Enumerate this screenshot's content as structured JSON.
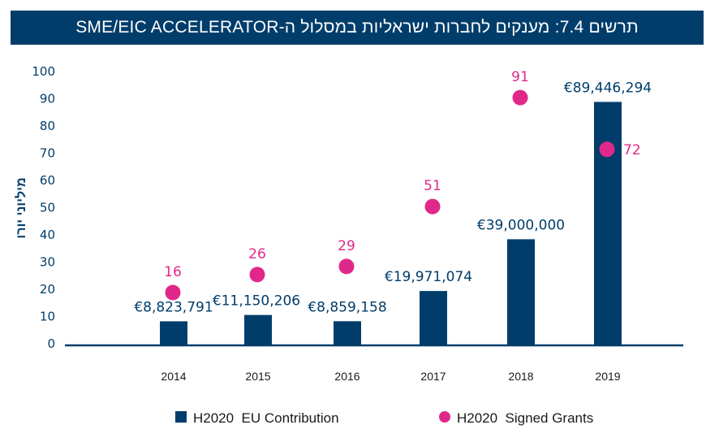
{
  "title": "תרשים 7.4: מענקים לחברות ישראליות במסלול ה-SME/EIC ACCELERATOR",
  "colors": {
    "bar": "#003d6b",
    "dot": "#e0288a",
    "title_bg": "#003d6b"
  },
  "chart_data": {
    "type": "bar",
    "title": "תרשים 7.4: מענקים לחברות ישראליות במסלול ה-SME/EIC ACCELERATOR",
    "xlabel": "",
    "ylabel": "מיליוני יורו",
    "ylim": [
      0,
      100
    ],
    "yticks": [
      "0",
      "10",
      "20",
      "30",
      "40",
      "50",
      "60",
      "70",
      "80",
      "90",
      "100"
    ],
    "grid": false,
    "legend_position": "bottom",
    "categories": [
      "2014",
      "2015",
      "2016",
      "2017",
      "2018",
      "2019"
    ],
    "series": [
      {
        "name": "H2020  EU Contribution",
        "type": "bar",
        "values": [
          8.823791,
          11.150206,
          8.859158,
          19.971074,
          39.0,
          89.446294
        ],
        "labels": [
          "€8,823,791",
          "€11,150,206",
          "€8,859,158",
          "€19,971,074",
          "€39,000,000",
          "€89,446,294"
        ]
      },
      {
        "name": "H2020  Signed Grants",
        "type": "scatter",
        "values": [
          16,
          26,
          29,
          51,
          91,
          72
        ],
        "labels": [
          "16",
          "26",
          "29",
          "51",
          "91",
          "72"
        ]
      }
    ]
  }
}
